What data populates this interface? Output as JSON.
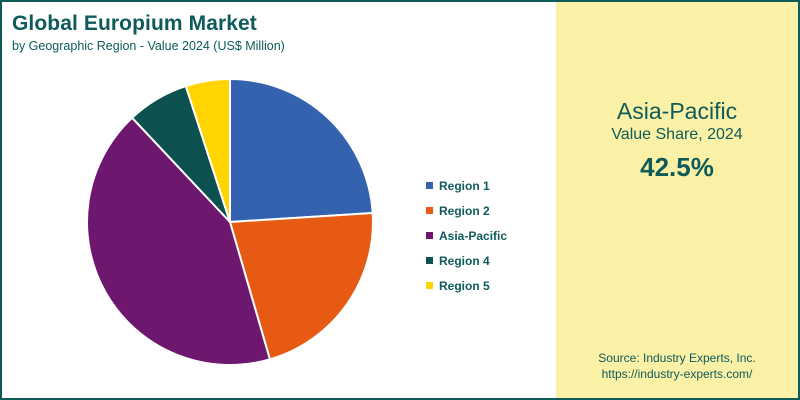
{
  "header": {
    "title": "Global Europium Market",
    "subtitle": "by Geographic Region - Value 2024 (US$ Million)"
  },
  "highlight": {
    "region": "Asia-Pacific",
    "caption": "Value Share, 2024",
    "value": "42.5%"
  },
  "source": {
    "line1": "Source: Industry Experts, Inc.",
    "line2": "https://industry-experts.com/"
  },
  "chart_data": {
    "type": "pie",
    "title": "Global Europium Market",
    "subtitle": "by Geographic Region - Value 2024 (US$ Million)",
    "categories": [
      "Region 1",
      "Region 2",
      "Asia-Pacific",
      "Region 4",
      "Region 5"
    ],
    "values": [
      24.0,
      21.5,
      42.5,
      7.0,
      5.0
    ],
    "colors": [
      "#3562ae",
      "#e65a14",
      "#6e176e",
      "#0c5050",
      "#ffd400"
    ],
    "start_angle_deg": 0,
    "direction": "clockwise",
    "legend_position": "right"
  }
}
